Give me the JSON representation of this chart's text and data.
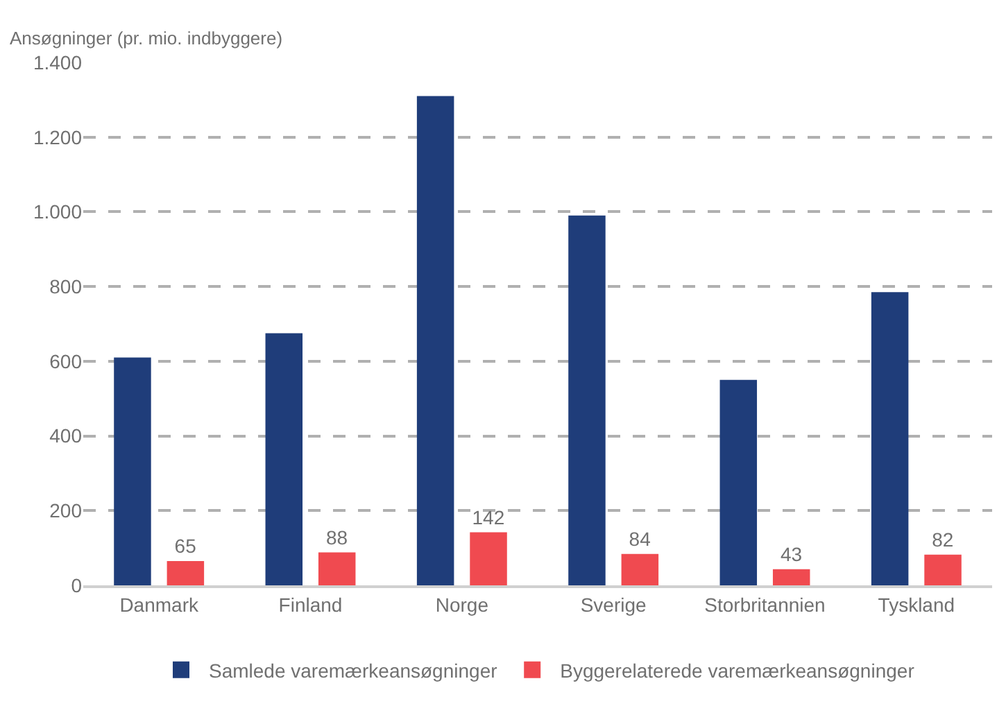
{
  "chart_data": {
    "type": "bar",
    "ylabel": "Ansøgninger (pr. mio. indbyggere)",
    "categories": [
      "Danmark",
      "Finland",
      "Norge",
      "Sverige",
      "Storbritannien",
      "Tyskland"
    ],
    "series": [
      {
        "name": "Samlede varemærkeansøgninger",
        "color": "#1f3d7a",
        "values": [
          610,
          675,
          1310,
          990,
          550,
          785
        ]
      },
      {
        "name": "Byggerelaterede varemærkeansøgninger",
        "color": "#f04a50",
        "values": [
          65,
          88,
          142,
          84,
          43,
          82
        ],
        "value_labels": [
          "65",
          "88",
          "142",
          "84",
          "43",
          "82"
        ]
      }
    ],
    "ylim": [
      0,
      1400
    ],
    "yticks": [
      0,
      {
        "value": 200,
        "label": "200"
      },
      {
        "value": 400,
        "label": "400"
      },
      {
        "value": 600,
        "label": "600"
      },
      {
        "value": 800,
        "label": "800"
      },
      {
        "value": 1000,
        "label": "1.000"
      },
      {
        "value": 1200,
        "label": "1.200"
      },
      {
        "value": 1400,
        "label": "1.400"
      }
    ],
    "grid": "y",
    "legend": "bottom"
  }
}
